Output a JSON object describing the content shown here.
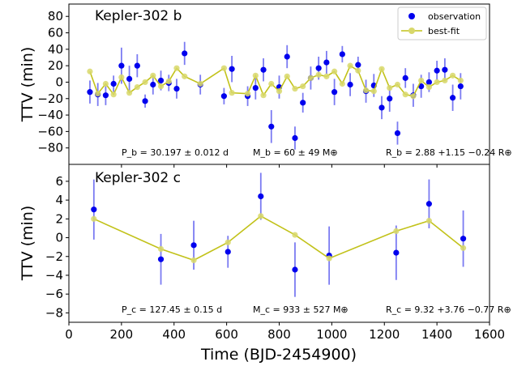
{
  "chart_data": [
    {
      "type": "scatter",
      "title": "Kepler-302 b",
      "ylabel": "TTV (min)",
      "xlabel": "",
      "xlim": [
        0,
        1600
      ],
      "ylim": [
        -100,
        95
      ],
      "yticks": [
        "80",
        "60",
        "40",
        "20",
        "0",
        "−20",
        "−40",
        "−60",
        "−80"
      ],
      "ytick_values": [
        80,
        60,
        40,
        20,
        0,
        -20,
        -40,
        -60,
        -80
      ],
      "legend": {
        "placement": "top-right",
        "entries": [
          "observation",
          "best-fit"
        ]
      },
      "annotations": [
        "P_b = 30.197 ± 0.012 d",
        "M_b = 60 ± 49 M⊕",
        "R_b = 2.88 +1.15 −0.24 R⊕"
      ],
      "colors": {
        "observation": "#0000ee",
        "errorbar": "#7b7bf2",
        "bestfit": "#c2c21a",
        "bestfit_marker": "#d8d86b"
      },
      "series": [
        {
          "name": "observation",
          "style": "errorbar",
          "x": [
            80,
            110,
            140,
            170,
            200,
            230,
            260,
            290,
            320,
            350,
            380,
            410,
            440,
            500,
            590,
            620,
            680,
            710,
            740,
            770,
            800,
            830,
            860,
            890,
            920,
            950,
            980,
            1010,
            1040,
            1070,
            1100,
            1130,
            1160,
            1190,
            1220,
            1250,
            1280,
            1310,
            1340,
            1370,
            1400,
            1430,
            1460,
            1490
          ],
          "y": [
            -12,
            -15,
            -16,
            -2,
            20,
            4,
            20,
            -23,
            -3,
            2,
            -1,
            -8,
            35,
            -3,
            -17,
            16,
            -17,
            -7,
            15,
            -54,
            -6,
            31,
            -68,
            -25,
            5,
            17,
            24,
            -12,
            34,
            -3,
            21,
            -11,
            -4,
            -31,
            -20,
            -62,
            5,
            -16,
            -5,
            0,
            14,
            15,
            -19,
            -5
          ],
          "yerr": [
            14,
            14,
            12,
            10,
            22,
            16,
            14,
            8,
            12,
            12,
            10,
            12,
            14,
            12,
            10,
            16,
            12,
            14,
            14,
            20,
            14,
            14,
            14,
            12,
            14,
            14,
            14,
            16,
            10,
            14,
            10,
            14,
            14,
            14,
            16,
            14,
            12,
            14,
            14,
            12,
            12,
            14,
            16,
            16
          ]
        },
        {
          "name": "best-fit",
          "style": "line",
          "x": [
            80,
            110,
            140,
            170,
            200,
            230,
            260,
            290,
            320,
            350,
            380,
            410,
            440,
            500,
            590,
            620,
            680,
            710,
            740,
            770,
            800,
            830,
            860,
            890,
            920,
            950,
            980,
            1010,
            1040,
            1070,
            1100,
            1130,
            1160,
            1190,
            1220,
            1250,
            1280,
            1310,
            1340,
            1370,
            1400,
            1430,
            1460,
            1490
          ],
          "y": [
            13,
            -14,
            -2,
            -15,
            6,
            -13,
            -6,
            0,
            8,
            -5,
            1,
            17,
            7,
            -2,
            17,
            -13,
            -14,
            8,
            -16,
            -2,
            -11,
            7,
            -8,
            -5,
            5,
            9,
            7,
            13,
            -2,
            20,
            14,
            -10,
            -11,
            16,
            -7,
            -3,
            -15,
            -17,
            2,
            -6,
            0,
            2,
            8,
            2
          ]
        }
      ]
    },
    {
      "type": "scatter",
      "title": "Kepler-302 c",
      "ylabel": "TTV (min)",
      "xlabel": "Time (BJD-2454900)",
      "xlim": [
        0,
        1600
      ],
      "ylim": [
        -9,
        7.8
      ],
      "xticks": [
        "0",
        "200",
        "400",
        "600",
        "800",
        "1000",
        "1200",
        "1400",
        "1600"
      ],
      "xtick_values": [
        0,
        200,
        400,
        600,
        800,
        1000,
        1200,
        1400,
        1600
      ],
      "yticks": [
        "6",
        "4",
        "2",
        "0",
        "−2",
        "−4",
        "−6",
        "−8"
      ],
      "ytick_values": [
        6,
        4,
        2,
        0,
        -2,
        -4,
        -6,
        -8
      ],
      "annotations": [
        "P_c = 127.45 ± 0.15 d",
        "M_c = 933 ± 527 M⊕",
        "R_c = 9.32 +3.76 −0.77 R⊕"
      ],
      "series": [
        {
          "name": "observation",
          "style": "errorbar",
          "x": [
            95,
            350,
            475,
            605,
            730,
            860,
            990,
            1245,
            1370,
            1500
          ],
          "y": [
            3.0,
            -2.3,
            -0.8,
            -1.5,
            4.4,
            -3.4,
            -1.9,
            -1.6,
            3.6,
            -0.1
          ],
          "yerr": [
            3.2,
            2.7,
            2.6,
            1.7,
            2.5,
            2.9,
            3.1,
            2.9,
            2.6,
            3.0
          ]
        },
        {
          "name": "best-fit",
          "style": "line",
          "x": [
            95,
            350,
            475,
            605,
            730,
            860,
            990,
            1245,
            1370,
            1500
          ],
          "y": [
            2.0,
            -1.2,
            -2.4,
            -0.5,
            2.3,
            0.3,
            -2.2,
            0.7,
            1.8,
            -1.1
          ]
        }
      ]
    }
  ]
}
